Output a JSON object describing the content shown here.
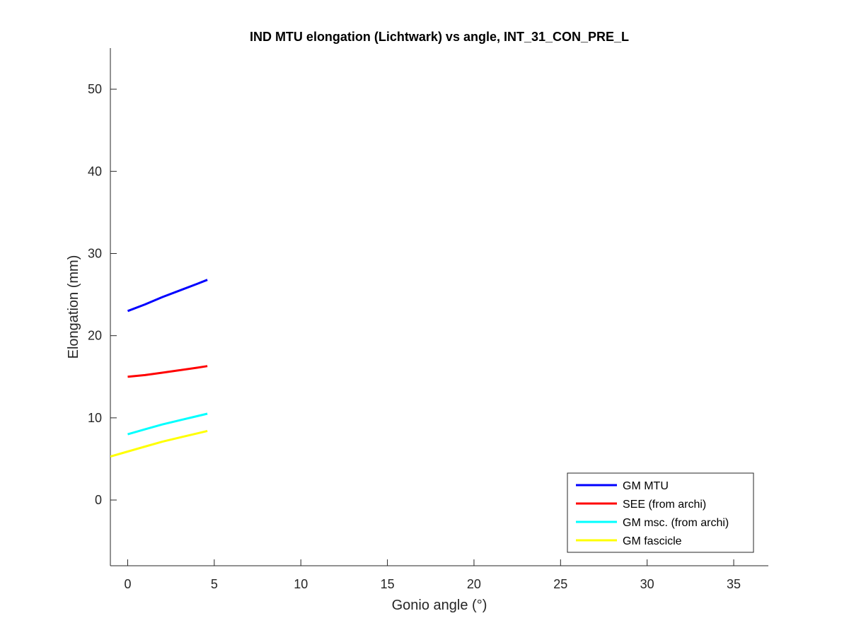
{
  "chart_data": {
    "type": "line",
    "title": "IND MTU elongation (Lichtwark) vs angle, INT_31_CON_PRE_L",
    "xlabel": "Gonio angle (°)",
    "ylabel": "Elongation (mm)",
    "xlim": [
      -1,
      37
    ],
    "ylim": [
      -8,
      55
    ],
    "xticks": [
      0,
      5,
      10,
      15,
      20,
      25,
      30,
      35
    ],
    "yticks": [
      0,
      10,
      20,
      30,
      40,
      50
    ],
    "xtick_labels": [
      "0",
      "5",
      "10",
      "15",
      "20",
      "25",
      "30",
      "35"
    ],
    "ytick_labels": [
      "0",
      "10",
      "20",
      "30",
      "40",
      "50"
    ],
    "grid": false,
    "box": "left-bottom",
    "legend_position": "bottom-right",
    "series": [
      {
        "name": "GM MTU",
        "color": "#0000ff",
        "x": [
          0,
          1,
          2,
          3,
          4,
          4.6
        ],
        "y": [
          23.0,
          23.8,
          24.7,
          25.5,
          26.3,
          26.8
        ]
      },
      {
        "name": "SEE (from archi)",
        "color": "#ff0000",
        "x": [
          0,
          1,
          2,
          3,
          4,
          4.6
        ],
        "y": [
          15.0,
          15.2,
          15.5,
          15.8,
          16.1,
          16.3
        ]
      },
      {
        "name": "GM msc. (from archi)",
        "color": "#00ffff",
        "x": [
          0,
          1,
          2,
          3,
          4,
          4.6
        ],
        "y": [
          8.0,
          8.6,
          9.2,
          9.7,
          10.2,
          10.5
        ]
      },
      {
        "name": "GM fascicle",
        "color": "#ffff00",
        "x": [
          -1,
          0,
          1,
          2,
          3,
          4,
          4.6
        ],
        "y": [
          5.3,
          5.9,
          6.5,
          7.1,
          7.6,
          8.1,
          8.4
        ]
      }
    ]
  }
}
